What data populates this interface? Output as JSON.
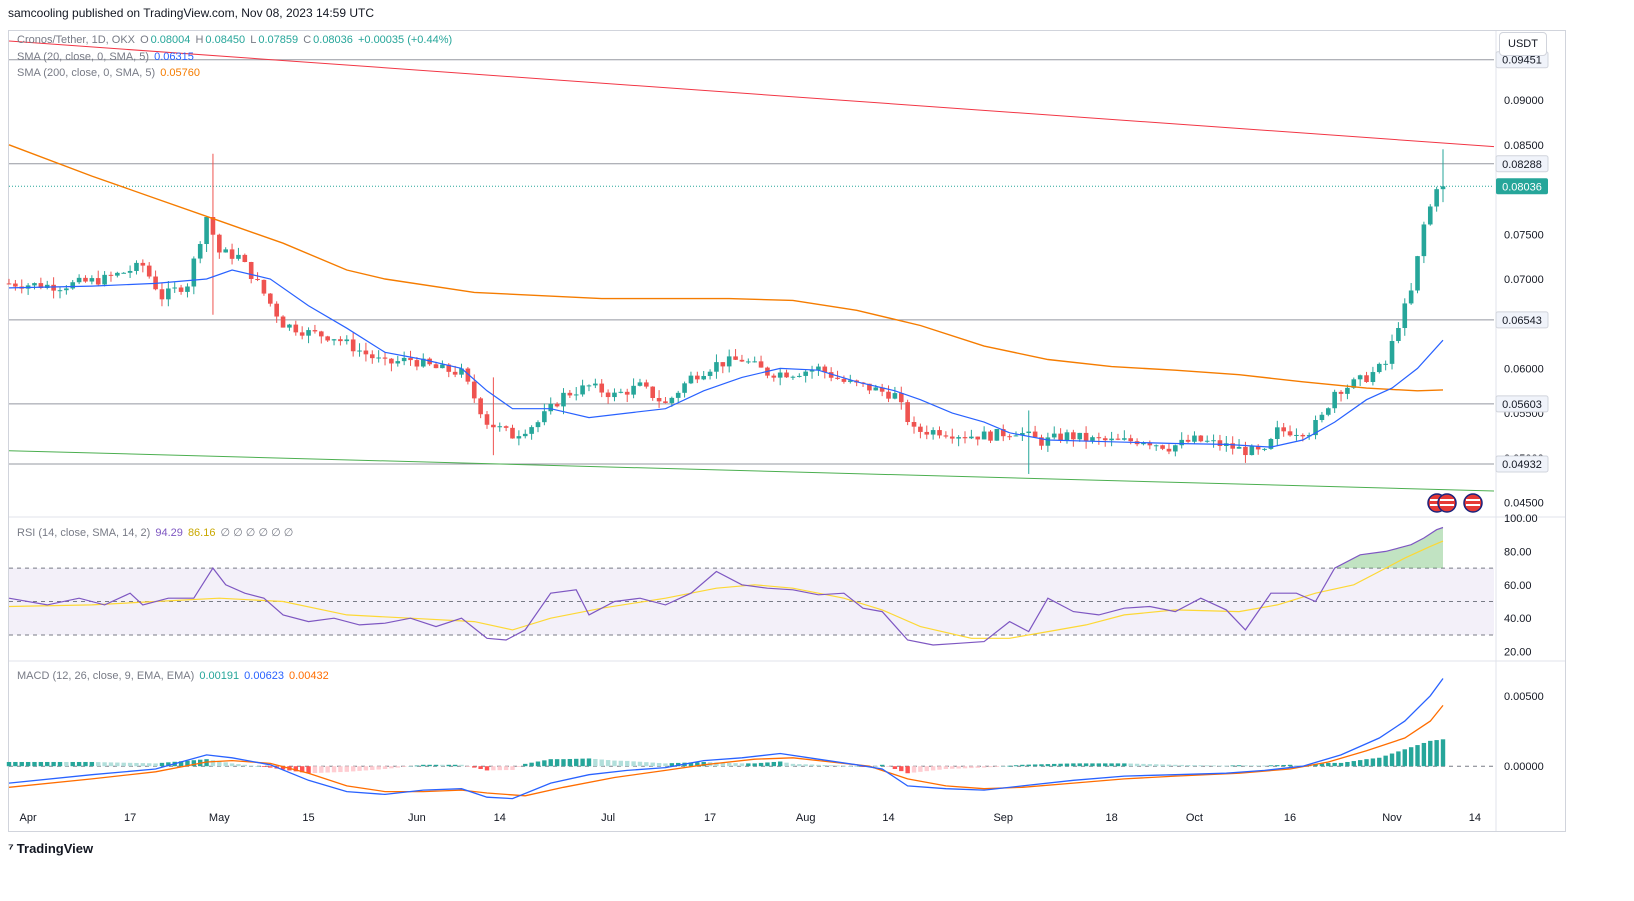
{
  "header": {
    "publisher_line": "samcooling published on TradingView.com, Nov 08, 2023 14:59 UTC"
  },
  "footer": {
    "brand": "TradingView"
  },
  "currency": "USDT",
  "legend": {
    "symbol": "Cronos/Tether, 1D, OKX",
    "o_label": "O",
    "o": "0.08004",
    "h_label": "H",
    "h": "0.08450",
    "l_label": "L",
    "l": "0.07859",
    "c_label": "C",
    "c": "0.08036",
    "change": "+0.00035 (+0.44%)",
    "sma20_label": "SMA (20, close, 0, SMA, 5)",
    "sma20": "0.06315",
    "sma200_label": "SMA (200, close, 0, SMA, 5)",
    "sma200": "0.05760",
    "rsi_label": "RSI (14, close, SMA, 14, 2)",
    "rsi": "94.29",
    "rsi_ma": "86.16",
    "rsi_extra": "∅ ∅ ∅ ∅ ∅ ∅",
    "macd_label": "MACD (12, 26, close, 9, EMA, EMA)",
    "macd_hist": "0.00191",
    "macd": "0.00623",
    "macd_signal": "0.00432"
  },
  "colors": {
    "up": "#26a69a",
    "down": "#ef5350",
    "sma20": "#2962ff",
    "sma200": "#f57c00",
    "resistance": "#f23645",
    "support": "#4caf50",
    "rsi": "#7e57c2",
    "rsi_ma": "#fdd835",
    "macd": "#2962ff",
    "signal": "#ff6d00"
  },
  "chart_data": {
    "type": "candlestick",
    "price_axis": {
      "ylim": [
        0.0435,
        0.0975
      ],
      "ticks": [
        "0.04500",
        "0.05000",
        "0.05500",
        "0.06000",
        "0.06500",
        "0.07000",
        "0.07500",
        "0.08000",
        "0.08500",
        "0.09000"
      ],
      "tick_values": [
        0.045,
        0.05,
        0.055,
        0.06,
        0.065,
        0.07,
        0.075,
        0.08,
        0.085,
        0.09
      ],
      "marked_levels": [
        {
          "label": "0.09451",
          "value": 0.09451
        },
        {
          "label": "0.08288",
          "value": 0.08288
        },
        {
          "label": "0.08036",
          "value": 0.08036,
          "current": true
        },
        {
          "label": "0.06543",
          "value": 0.06543
        },
        {
          "label": "0.05603",
          "value": 0.05603
        },
        {
          "label": "0.04932",
          "value": 0.04932
        }
      ]
    },
    "x_axis": {
      "labels": [
        {
          "text": "Apr",
          "day": 0
        },
        {
          "text": "17",
          "day": 16
        },
        {
          "text": "May",
          "day": 30
        },
        {
          "text": "15",
          "day": 44
        },
        {
          "text": "Jun",
          "day": 61
        },
        {
          "text": "14",
          "day": 74
        },
        {
          "text": "Jul",
          "day": 91
        },
        {
          "text": "17",
          "day": 107
        },
        {
          "text": "Aug",
          "day": 122
        },
        {
          "text": "14",
          "day": 135
        },
        {
          "text": "Sep",
          "day": 153
        },
        {
          "text": "18",
          "day": 170
        },
        {
          "text": "Oct",
          "day": 183
        },
        {
          "text": "16",
          "day": 198
        },
        {
          "text": "Nov",
          "day": 214
        },
        {
          "text": "14",
          "day": 227
        }
      ],
      "day_range": [
        -3,
        230
      ]
    },
    "trendlines": [
      {
        "name": "resistance",
        "from": [
          -3,
          0.0966
        ],
        "to": [
          230,
          0.0848
        ]
      },
      {
        "name": "support",
        "from": [
          -3,
          0.0508
        ],
        "to": [
          230,
          0.0463
        ]
      }
    ],
    "candle_anchors": [
      [
        -3,
        0.0695
      ],
      [
        5,
        0.0692
      ],
      [
        12,
        0.07
      ],
      [
        18,
        0.0715
      ],
      [
        21,
        0.068
      ],
      [
        25,
        0.0695
      ],
      [
        28,
        0.077
      ],
      [
        30,
        0.073
      ],
      [
        33,
        0.0725
      ],
      [
        36,
        0.0695
      ],
      [
        40,
        0.065
      ],
      [
        44,
        0.064
      ],
      [
        48,
        0.0635
      ],
      [
        52,
        0.062
      ],
      [
        56,
        0.0605
      ],
      [
        60,
        0.061
      ],
      [
        64,
        0.06
      ],
      [
        68,
        0.0595
      ],
      [
        72,
        0.054
      ],
      [
        76,
        0.0525
      ],
      [
        80,
        0.054
      ],
      [
        84,
        0.057
      ],
      [
        88,
        0.058
      ],
      [
        92,
        0.057
      ],
      [
        96,
        0.058
      ],
      [
        100,
        0.056
      ],
      [
        104,
        0.059
      ],
      [
        108,
        0.0605
      ],
      [
        112,
        0.061
      ],
      [
        116,
        0.0595
      ],
      [
        120,
        0.0595
      ],
      [
        124,
        0.06
      ],
      [
        128,
        0.0585
      ],
      [
        132,
        0.0578
      ],
      [
        136,
        0.057
      ],
      [
        139,
        0.053
      ],
      [
        143,
        0.053
      ],
      [
        147,
        0.0525
      ],
      [
        151,
        0.0525
      ],
      [
        155,
        0.053
      ],
      [
        159,
        0.0518
      ],
      [
        163,
        0.0525
      ],
      [
        167,
        0.052
      ],
      [
        171,
        0.0518
      ],
      [
        175,
        0.052
      ],
      [
        179,
        0.0512
      ],
      [
        183,
        0.052
      ],
      [
        187,
        0.0515
      ],
      [
        191,
        0.0508
      ],
      [
        194,
        0.0505
      ],
      [
        196,
        0.053
      ],
      [
        199,
        0.053
      ],
      [
        201,
        0.053
      ],
      [
        203,
        0.0545
      ],
      [
        205,
        0.0575
      ],
      [
        207,
        0.058
      ],
      [
        210,
        0.059
      ],
      [
        213,
        0.0605
      ],
      [
        215,
        0.065
      ],
      [
        217,
        0.0685
      ],
      [
        219,
        0.076
      ],
      [
        221,
        0.08004
      ],
      [
        222,
        0.08036
      ]
    ],
    "notable_wicks": [
      {
        "day": 29,
        "high": 0.084,
        "low": 0.066
      },
      {
        "day": 73,
        "high": 0.059,
        "low": 0.0503
      },
      {
        "day": 157,
        "high": 0.0553,
        "low": 0.0482
      },
      {
        "day": 222,
        "high": 0.0845,
        "low": 0.07859
      }
    ],
    "sma20_points": [
      [
        -3,
        0.069
      ],
      [
        10,
        0.0692
      ],
      [
        20,
        0.0695
      ],
      [
        28,
        0.07
      ],
      [
        32,
        0.071
      ],
      [
        38,
        0.07
      ],
      [
        44,
        0.067
      ],
      [
        50,
        0.0645
      ],
      [
        56,
        0.0618
      ],
      [
        62,
        0.061
      ],
      [
        68,
        0.06
      ],
      [
        72,
        0.0575
      ],
      [
        76,
        0.0555
      ],
      [
        82,
        0.0555
      ],
      [
        88,
        0.0545
      ],
      [
        94,
        0.055
      ],
      [
        100,
        0.0555
      ],
      [
        106,
        0.0575
      ],
      [
        112,
        0.059
      ],
      [
        118,
        0.06
      ],
      [
        124,
        0.0598
      ],
      [
        130,
        0.0585
      ],
      [
        136,
        0.0575
      ],
      [
        140,
        0.0565
      ],
      [
        145,
        0.055
      ],
      [
        150,
        0.054
      ],
      [
        154,
        0.0528
      ],
      [
        160,
        0.052
      ],
      [
        170,
        0.0518
      ],
      [
        180,
        0.0516
      ],
      [
        188,
        0.0515
      ],
      [
        195,
        0.0512
      ],
      [
        200,
        0.052
      ],
      [
        205,
        0.054
      ],
      [
        210,
        0.0565
      ],
      [
        214,
        0.0578
      ],
      [
        218,
        0.06
      ],
      [
        222,
        0.06315
      ]
    ],
    "sma200_points": [
      [
        -3,
        0.085
      ],
      [
        10,
        0.0815
      ],
      [
        20,
        0.079
      ],
      [
        30,
        0.0765
      ],
      [
        40,
        0.074
      ],
      [
        50,
        0.071
      ],
      [
        56,
        0.07
      ],
      [
        70,
        0.0685
      ],
      [
        90,
        0.0678
      ],
      [
        110,
        0.0678
      ],
      [
        120,
        0.0676
      ],
      [
        130,
        0.0665
      ],
      [
        140,
        0.0648
      ],
      [
        150,
        0.0625
      ],
      [
        160,
        0.061
      ],
      [
        170,
        0.0602
      ],
      [
        180,
        0.0598
      ],
      [
        190,
        0.0593
      ],
      [
        200,
        0.0585
      ],
      [
        210,
        0.0578
      ],
      [
        218,
        0.0575
      ],
      [
        222,
        0.0576
      ]
    ],
    "rsi": {
      "ylim": [
        15,
        100
      ],
      "ticks": [
        "20.00",
        "40.00",
        "60.00",
        "80.00",
        "100.00"
      ],
      "tick_values": [
        20,
        40,
        60,
        80,
        100
      ],
      "band": [
        30,
        70
      ],
      "mid": 50,
      "rsi_points": [
        [
          -3,
          52
        ],
        [
          3,
          48
        ],
        [
          8,
          52
        ],
        [
          12,
          48
        ],
        [
          16,
          55
        ],
        [
          18,
          48
        ],
        [
          22,
          52
        ],
        [
          26,
          52
        ],
        [
          29,
          70
        ],
        [
          31,
          60
        ],
        [
          34,
          55
        ],
        [
          37,
          52
        ],
        [
          40,
          42
        ],
        [
          44,
          38
        ],
        [
          48,
          40
        ],
        [
          52,
          36
        ],
        [
          56,
          37
        ],
        [
          60,
          40
        ],
        [
          64,
          35
        ],
        [
          68,
          40
        ],
        [
          72,
          28
        ],
        [
          75,
          27
        ],
        [
          78,
          33
        ],
        [
          82,
          55
        ],
        [
          86,
          57
        ],
        [
          88,
          42
        ],
        [
          92,
          50
        ],
        [
          96,
          52
        ],
        [
          100,
          48
        ],
        [
          104,
          55
        ],
        [
          108,
          68
        ],
        [
          112,
          60
        ],
        [
          116,
          58
        ],
        [
          120,
          57
        ],
        [
          124,
          54
        ],
        [
          128,
          55
        ],
        [
          131,
          46
        ],
        [
          134,
          44
        ],
        [
          138,
          27
        ],
        [
          142,
          24
        ],
        [
          146,
          25
        ],
        [
          150,
          26
        ],
        [
          154,
          38
        ],
        [
          157,
          32
        ],
        [
          160,
          52
        ],
        [
          164,
          44
        ],
        [
          168,
          42
        ],
        [
          172,
          46
        ],
        [
          176,
          47
        ],
        [
          180,
          44
        ],
        [
          184,
          52
        ],
        [
          188,
          45
        ],
        [
          191,
          33
        ],
        [
          195,
          55
        ],
        [
          199,
          55
        ],
        [
          202,
          50
        ],
        [
          205,
          70
        ],
        [
          209,
          78
        ],
        [
          213,
          80
        ],
        [
          215,
          82
        ],
        [
          217,
          84
        ],
        [
          219,
          88
        ],
        [
          221,
          93
        ],
        [
          222,
          94.29
        ]
      ],
      "rsi_ma_points": [
        [
          -3,
          47
        ],
        [
          10,
          48
        ],
        [
          20,
          50
        ],
        [
          30,
          52
        ],
        [
          40,
          50
        ],
        [
          50,
          42
        ],
        [
          60,
          40
        ],
        [
          70,
          38
        ],
        [
          76,
          33
        ],
        [
          82,
          40
        ],
        [
          90,
          46
        ],
        [
          100,
          52
        ],
        [
          108,
          58
        ],
        [
          114,
          60
        ],
        [
          120,
          58
        ],
        [
          128,
          52
        ],
        [
          134,
          45
        ],
        [
          140,
          35
        ],
        [
          148,
          28
        ],
        [
          154,
          28
        ],
        [
          160,
          32
        ],
        [
          166,
          36
        ],
        [
          172,
          42
        ],
        [
          180,
          45
        ],
        [
          190,
          44
        ],
        [
          196,
          48
        ],
        [
          202,
          55
        ],
        [
          208,
          60
        ],
        [
          212,
          68
        ],
        [
          216,
          76
        ],
        [
          220,
          83
        ],
        [
          222,
          86.16
        ]
      ]
    },
    "macd": {
      "ylim": [
        -0.0024,
        0.0074
      ],
      "ticks": [
        "0.00000",
        "0.00500"
      ],
      "tick_values": [
        0.0,
        0.005
      ],
      "macd_points": [
        [
          -3,
          -0.0012
        ],
        [
          10,
          -0.0006
        ],
        [
          20,
          -0.0002
        ],
        [
          28,
          0.0008
        ],
        [
          32,
          0.0006
        ],
        [
          38,
          0.0001
        ],
        [
          44,
          -0.001
        ],
        [
          50,
          -0.0018
        ],
        [
          56,
          -0.002
        ],
        [
          62,
          -0.0017
        ],
        [
          68,
          -0.0016
        ],
        [
          72,
          -0.0022
        ],
        [
          76,
          -0.0023
        ],
        [
          82,
          -0.0012
        ],
        [
          88,
          -0.0006
        ],
        [
          94,
          -0.0003
        ],
        [
          100,
          -0.0001
        ],
        [
          106,
          0.0004
        ],
        [
          112,
          0.0006
        ],
        [
          118,
          0.0009
        ],
        [
          124,
          0.0005
        ],
        [
          130,
          0.0001
        ],
        [
          134,
          -0.0002
        ],
        [
          138,
          -0.0014
        ],
        [
          144,
          -0.0016
        ],
        [
          150,
          -0.0017
        ],
        [
          156,
          -0.0014
        ],
        [
          164,
          -0.001
        ],
        [
          172,
          -0.0007
        ],
        [
          180,
          -0.0006
        ],
        [
          188,
          -0.0005
        ],
        [
          194,
          -0.0003
        ],
        [
          200,
          0.0
        ],
        [
          206,
          0.0008
        ],
        [
          212,
          0.002
        ],
        [
          216,
          0.0032
        ],
        [
          220,
          0.005
        ],
        [
          222,
          0.00623
        ]
      ],
      "signal_points": [
        [
          -3,
          -0.0015
        ],
        [
          10,
          -0.0009
        ],
        [
          20,
          -0.0004
        ],
        [
          28,
          0.0003
        ],
        [
          32,
          0.0004
        ],
        [
          38,
          0.0002
        ],
        [
          44,
          -0.0005
        ],
        [
          50,
          -0.0014
        ],
        [
          56,
          -0.0018
        ],
        [
          62,
          -0.0018
        ],
        [
          68,
          -0.0017
        ],
        [
          72,
          -0.0019
        ],
        [
          78,
          -0.0021
        ],
        [
          84,
          -0.0015
        ],
        [
          92,
          -0.0008
        ],
        [
          100,
          -0.0003
        ],
        [
          106,
          0.0001
        ],
        [
          114,
          0.0005
        ],
        [
          120,
          0.0006
        ],
        [
          126,
          0.0003
        ],
        [
          132,
          0.0
        ],
        [
          138,
          -0.0009
        ],
        [
          144,
          -0.0014
        ],
        [
          150,
          -0.0016
        ],
        [
          156,
          -0.0015
        ],
        [
          164,
          -0.0012
        ],
        [
          172,
          -0.0009
        ],
        [
          180,
          -0.0007
        ],
        [
          190,
          -0.0005
        ],
        [
          198,
          -0.0002
        ],
        [
          204,
          0.0003
        ],
        [
          210,
          0.0011
        ],
        [
          216,
          0.002
        ],
        [
          220,
          0.0032
        ],
        [
          222,
          0.00432
        ]
      ]
    }
  }
}
